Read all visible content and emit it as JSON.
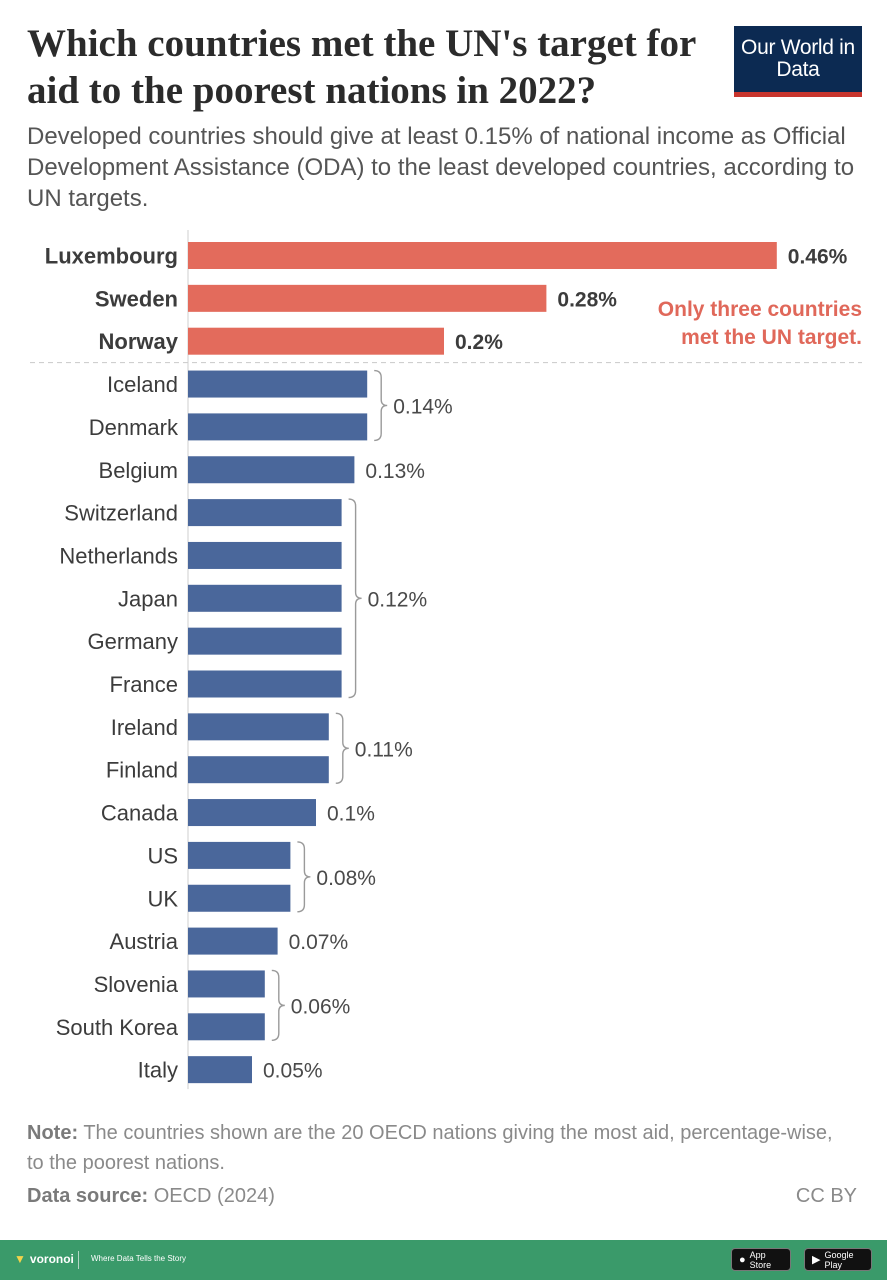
{
  "header": {
    "title": "Which countries met the UN's target for aid to the poorest nations in 2022?",
    "subtitle": "Developed countries should give at least 0.15% of national income as Official Development Assistance (ODA) to the least developed countries, according to UN targets."
  },
  "logo": {
    "text": "Our World in Data"
  },
  "colors": {
    "highlight": "#e36b5c",
    "bar": "#4a679b",
    "annotation": "#e0685a",
    "logo_bg": "#0c2a52",
    "footer_bg": "#3a9a6a"
  },
  "chart_data": {
    "type": "bar",
    "orientation": "horizontal",
    "unit": "% of national income",
    "target": 0.15,
    "categories": [
      "Luxembourg",
      "Sweden",
      "Norway",
      "Iceland",
      "Denmark",
      "Belgium",
      "Switzerland",
      "Netherlands",
      "Japan",
      "Germany",
      "France",
      "Ireland",
      "Finland",
      "Canada",
      "US",
      "UK",
      "Austria",
      "Slovenia",
      "South Korea",
      "Italy"
    ],
    "values": [
      0.46,
      0.28,
      0.2,
      0.14,
      0.14,
      0.13,
      0.12,
      0.12,
      0.12,
      0.12,
      0.12,
      0.11,
      0.11,
      0.1,
      0.08,
      0.08,
      0.07,
      0.06,
      0.06,
      0.05
    ],
    "highlighted": [
      "Luxembourg",
      "Sweden",
      "Norway"
    ],
    "groups": [
      {
        "label": "0.46%",
        "members": [
          "Luxembourg"
        ]
      },
      {
        "label": "0.28%",
        "members": [
          "Sweden"
        ]
      },
      {
        "label": "0.2%",
        "members": [
          "Norway"
        ]
      },
      {
        "label": "0.14%",
        "members": [
          "Iceland",
          "Denmark"
        ]
      },
      {
        "label": "0.13%",
        "members": [
          "Belgium"
        ]
      },
      {
        "label": "0.12%",
        "members": [
          "Switzerland",
          "Netherlands",
          "Japan",
          "Germany",
          "France"
        ]
      },
      {
        "label": "0.11%",
        "members": [
          "Ireland",
          "Finland"
        ]
      },
      {
        "label": "0.1%",
        "members": [
          "Canada"
        ]
      },
      {
        "label": "0.08%",
        "members": [
          "US",
          "UK"
        ]
      },
      {
        "label": "0.07%",
        "members": [
          "Austria"
        ]
      },
      {
        "label": "0.06%",
        "members": [
          "Slovenia",
          "South Korea"
        ]
      },
      {
        "label": "0.05%",
        "members": [
          "Italy"
        ]
      }
    ],
    "annotation": [
      "Only three countries",
      "met the UN target."
    ]
  },
  "footnotes": {
    "note_label": "Note:",
    "note_text": "The countries shown are the 20 OECD nations giving the most aid, percentage-wise, to the poorest nations.",
    "source_label": "Data source:",
    "source_text": "OECD (2024)",
    "license": "CC BY"
  },
  "footer": {
    "brand": "voronoi",
    "tagline": "Where Data Tells the Story",
    "app_store": "App Store",
    "google_play": "Google Play"
  }
}
